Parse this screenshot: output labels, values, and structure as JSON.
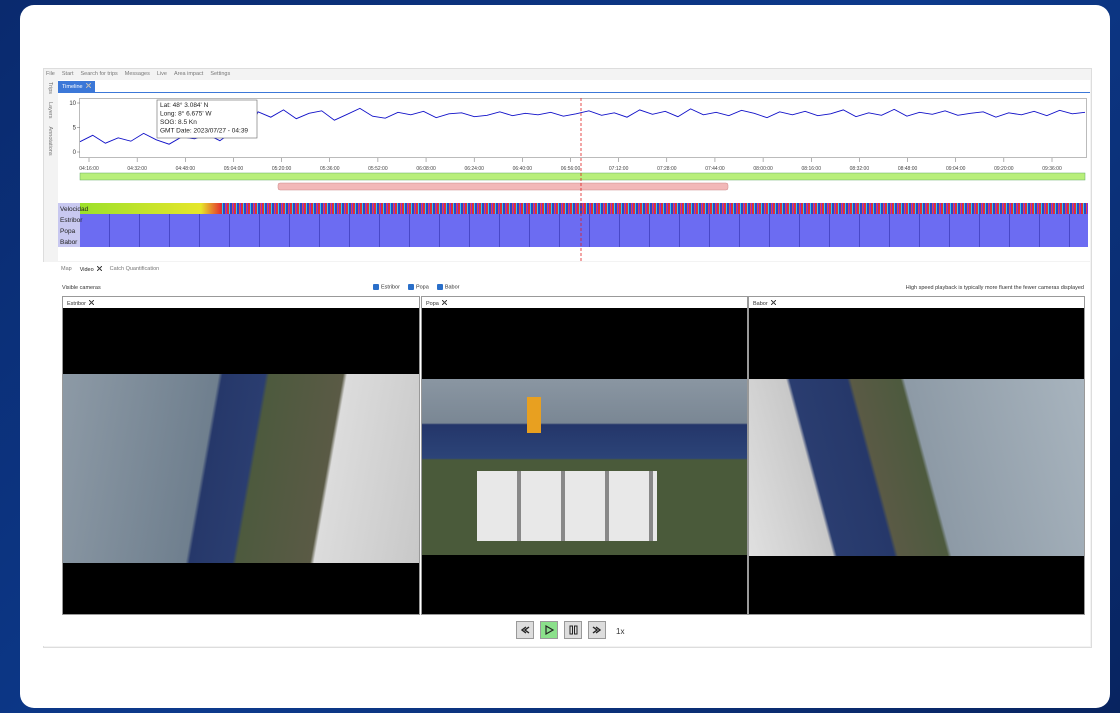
{
  "menu": [
    "File",
    "Start",
    "Search for trips",
    "Messages",
    "Live",
    "Area impact",
    "Settings"
  ],
  "side_tabs": [
    "Trips",
    "Layers",
    "Annotations"
  ],
  "timeline": {
    "tab": "Timeline",
    "speed": {
      "ylim": [
        0,
        10
      ],
      "yticks": [
        0,
        5,
        10
      ],
      "color": "#1010c8",
      "values": [
        2.1,
        3.4,
        1.8,
        2.9,
        2.2,
        3.8,
        2.5,
        1.6,
        3.1,
        2.7,
        3.6,
        2.3,
        4.2,
        3.0,
        8.2,
        7.1,
        8.6,
        6.8,
        7.9,
        8.4,
        6.5,
        7.7,
        8.9,
        7.3,
        6.9,
        8.1,
        7.6,
        8.3,
        7.0,
        7.8,
        8.0,
        7.2,
        7.5,
        8.2,
        7.4,
        7.9,
        7.6,
        8.1,
        7.3,
        7.8,
        8.4,
        7.5,
        8.0,
        7.1,
        8.6,
        7.7,
        8.3,
        7.2,
        8.8,
        7.6,
        8.1,
        7.4,
        8.5,
        7.9,
        7.0,
        8.2,
        7.6,
        8.3,
        7.4,
        7.8,
        8.6,
        7.2,
        8.0,
        7.5,
        8.7,
        7.3,
        8.1,
        7.7,
        8.4,
        7.5,
        7.9,
        8.2,
        7.1,
        8.0,
        7.6,
        8.3,
        7.4,
        8.5,
        7.8,
        8.1
      ]
    },
    "tooltip": [
      "Lat: 48° 3.084' N",
      "Long: 8° 6.675' W",
      "SOG: 8.5 Kn",
      "GMT Date: 2023/07/27 - 04:39"
    ],
    "time_ticks": [
      "04:16:00",
      "04:32:00",
      "04:48:00",
      "05:04:00",
      "05:20:00",
      "05:36:00",
      "05:52:00",
      "06:08:00",
      "06:24:00",
      "06:40:00",
      "06:56:00",
      "07:12:00",
      "07:28:00",
      "07:44:00",
      "08:00:00",
      "08:16:00",
      "08:32:00",
      "08:48:00",
      "09:04:00",
      "09:20:00",
      "09:36:00"
    ],
    "tracks": [
      "Velocidad",
      "Estribor",
      "Popa",
      "Babor"
    ]
  },
  "bottom_tabs": [
    "Map",
    "Video",
    "Catch Quantification"
  ],
  "video": {
    "visible_label": "Visible cameras",
    "checkboxes": [
      "Estribor",
      "Popa",
      "Babor"
    ],
    "hint": "High speed playback is typically more fluent the fewer cameras displayed",
    "panels": [
      "Estribor",
      "Popa",
      "Babor"
    ],
    "speed": "1x"
  }
}
